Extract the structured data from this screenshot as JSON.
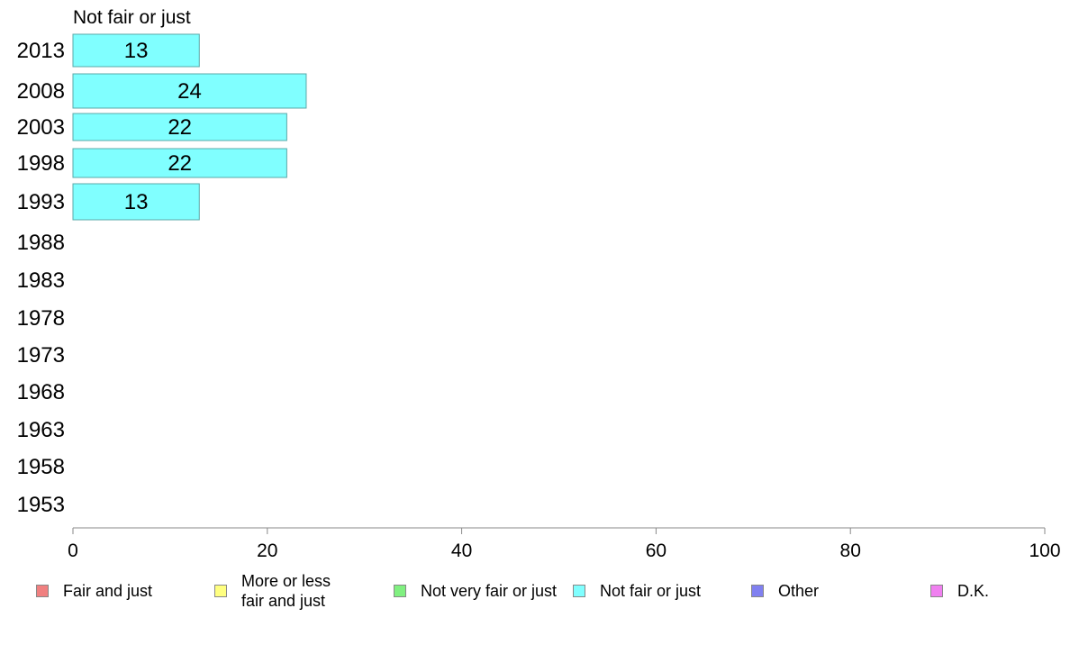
{
  "chart_data": {
    "type": "bar",
    "orientation": "horizontal",
    "title": "Not fair or just",
    "categories": [
      "2013",
      "2008",
      "2003",
      "1998",
      "1993",
      "1988",
      "1983",
      "1978",
      "1973",
      "1968",
      "1963",
      "1958",
      "1953"
    ],
    "series": [
      {
        "name": "Not fair or just",
        "color": "#80ffff",
        "values": [
          13,
          24,
          22,
          22,
          13,
          null,
          null,
          null,
          null,
          null,
          null,
          null,
          null
        ],
        "labels": [
          "13",
          "24",
          "22",
          "22",
          "13",
          "",
          "",
          "",
          "",
          "",
          "",
          "",
          ""
        ]
      }
    ],
    "xlim": [
      0,
      100
    ],
    "xticks": [
      "0",
      "20",
      "40",
      "60",
      "80",
      "100"
    ],
    "grid": false,
    "legend_position": "bottom"
  },
  "legend": [
    {
      "label": "Fair and just",
      "color": "#f08080"
    },
    {
      "label": "More or less\nfair and just",
      "color": "#ffff80"
    },
    {
      "label": "Not very fair or just",
      "color": "#80f080"
    },
    {
      "label": "Not fair or just",
      "color": "#80ffff"
    },
    {
      "label": "Other",
      "color": "#8080f0"
    },
    {
      "label": "D.K.",
      "color": "#f080f0"
    }
  ]
}
